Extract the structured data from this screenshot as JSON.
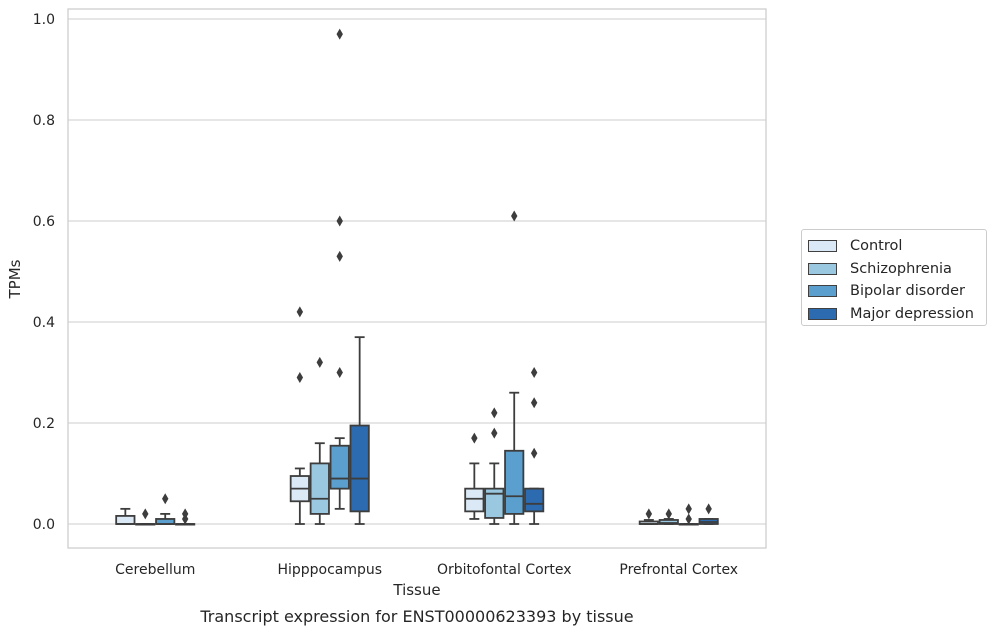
{
  "caption": "Transcript expression for ENST00000623393 by tissue",
  "chart_data": {
    "type": "box",
    "xlabel": "Tissue",
    "ylabel": "TPMs",
    "ylim": [
      -0.045,
      1.02
    ],
    "yticks": [
      "0.0",
      "0.2",
      "0.4",
      "0.6",
      "0.8",
      "1.0"
    ],
    "grid": true,
    "legend_position": "right",
    "categories": [
      "Cerebellum",
      "Hipppocampus",
      "Orbitofontal Cortex",
      "Prefrontal Cortex"
    ],
    "series": [
      {
        "name": "Control",
        "color": "#dbe9f6",
        "boxes": [
          {
            "q1": 0.0,
            "median": 0.0,
            "q3": 0.016,
            "whislo": 0.0,
            "whishi": 0.03,
            "fliers": []
          },
          {
            "q1": 0.045,
            "median": 0.07,
            "q3": 0.095,
            "whislo": 0.0,
            "whishi": 0.11,
            "fliers": [
              0.29,
              0.42
            ]
          },
          {
            "q1": 0.025,
            "median": 0.05,
            "q3": 0.07,
            "whislo": 0.01,
            "whishi": 0.12,
            "fliers": [
              0.17
            ]
          },
          {
            "q1": 0.0,
            "median": 0.0,
            "q3": 0.005,
            "whislo": 0.0,
            "whishi": 0.008,
            "fliers": [
              0.02
            ]
          }
        ]
      },
      {
        "name": "Schizophrenia",
        "color": "#9ac8e0",
        "boxes": [
          {
            "q1": 0.0,
            "median": 0.0,
            "q3": 0.0,
            "whislo": 0.0,
            "whishi": 0.0,
            "fliers": [
              0.02
            ]
          },
          {
            "q1": 0.02,
            "median": 0.05,
            "q3": 0.12,
            "whislo": 0.0,
            "whishi": 0.16,
            "fliers": [
              0.32
            ]
          },
          {
            "q1": 0.012,
            "median": 0.06,
            "q3": 0.07,
            "whislo": 0.0,
            "whishi": 0.12,
            "fliers": [
              0.18,
              0.22
            ]
          },
          {
            "q1": 0.0,
            "median": 0.002,
            "q3": 0.008,
            "whislo": 0.0,
            "whishi": 0.01,
            "fliers": [
              0.02
            ]
          }
        ]
      },
      {
        "name": "Bipolar disorder",
        "color": "#5a9fcd",
        "boxes": [
          {
            "q1": 0.0,
            "median": 0.0,
            "q3": 0.01,
            "whislo": 0.0,
            "whishi": 0.02,
            "fliers": [
              0.05
            ]
          },
          {
            "q1": 0.07,
            "median": 0.09,
            "q3": 0.155,
            "whislo": 0.03,
            "whishi": 0.17,
            "fliers": [
              0.3,
              0.53,
              0.6,
              0.97
            ]
          },
          {
            "q1": 0.02,
            "median": 0.055,
            "q3": 0.145,
            "whislo": 0.0,
            "whishi": 0.26,
            "fliers": [
              0.61
            ]
          },
          {
            "q1": 0.0,
            "median": 0.0,
            "q3": 0.0,
            "whislo": 0.0,
            "whishi": 0.0,
            "fliers": [
              0.01,
              0.03
            ]
          }
        ]
      },
      {
        "name": "Major depression",
        "color": "#2c6bb0",
        "boxes": [
          {
            "q1": 0.0,
            "median": 0.0,
            "q3": 0.0,
            "whislo": 0.0,
            "whishi": 0.0,
            "fliers": [
              0.01,
              0.02
            ]
          },
          {
            "q1": 0.025,
            "median": 0.09,
            "q3": 0.195,
            "whislo": 0.0,
            "whishi": 0.37,
            "fliers": []
          },
          {
            "q1": 0.025,
            "median": 0.04,
            "q3": 0.07,
            "whislo": 0.0,
            "whishi": 0.07,
            "fliers": [
              0.14,
              0.24,
              0.3
            ]
          },
          {
            "q1": 0.0,
            "median": 0.004,
            "q3": 0.01,
            "whislo": 0.0,
            "whishi": 0.01,
            "fliers": [
              0.03
            ]
          }
        ]
      }
    ]
  }
}
